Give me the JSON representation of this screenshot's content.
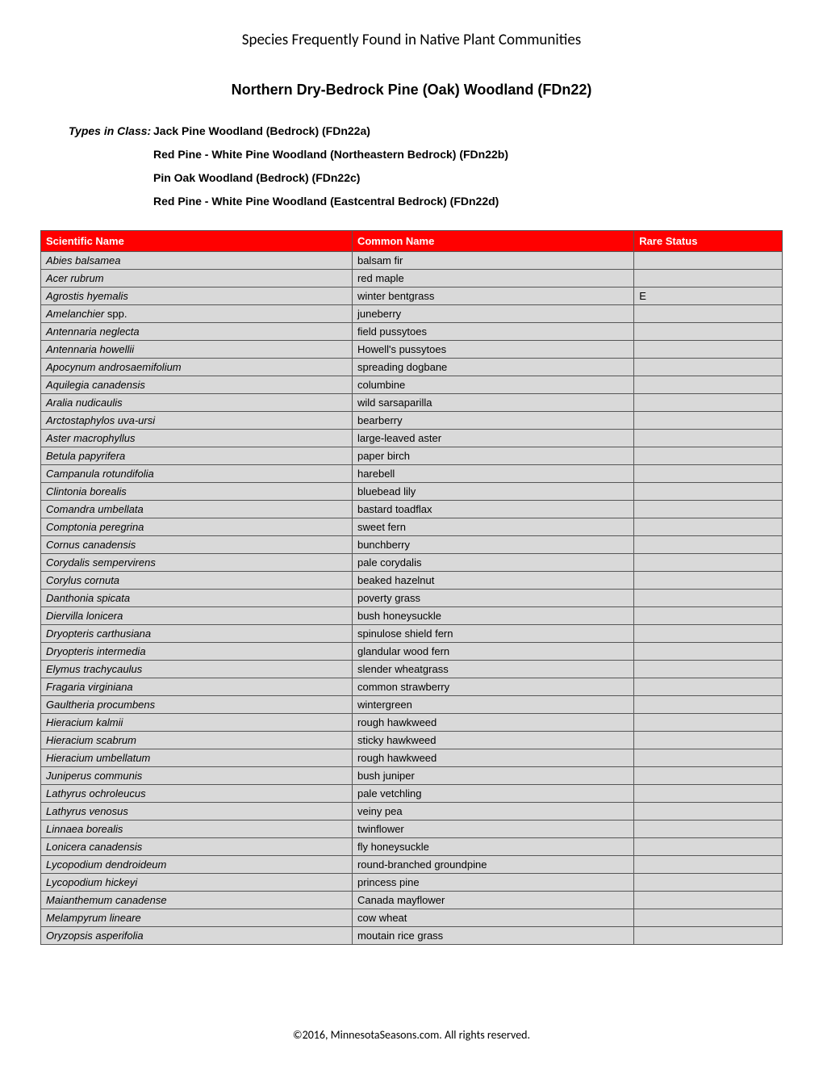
{
  "page_title": "Species Frequently Found in Native Plant Communities",
  "doc_title": "Northern Dry-Bedrock Pine (Oak) Woodland  (FDn22)",
  "types_label": "Types in Class:",
  "types_in_class": [
    "Jack Pine Woodland (Bedrock)  (FDn22a)",
    "Red Pine - White Pine Woodland (Northeastern Bedrock)  (FDn22b)",
    "Pin Oak Woodland (Bedrock)  (FDn22c)",
    "Red Pine - White Pine Woodland (Eastcentral Bedrock)  (FDn22d)"
  ],
  "table": {
    "header_bg": "#ff0000",
    "header_fg": "#ffffff",
    "row_bg": "#d9d9d9",
    "border_color": "#555555",
    "columns": [
      "Scientific Name",
      "Common Name",
      "Rare Status"
    ],
    "rows": [
      {
        "sci": "Abies balsamea",
        "common": "balsam fir",
        "rare": ""
      },
      {
        "sci": "Acer rubrum",
        "common": "red maple",
        "rare": ""
      },
      {
        "sci": "Agrostis hyemalis",
        "common": "winter bentgrass",
        "rare": "E"
      },
      {
        "sci": "Amelanchier",
        "sci_suffix": " spp.",
        "common": "juneberry",
        "rare": ""
      },
      {
        "sci": "Antennaria neglecta",
        "common": "field pussytoes",
        "rare": ""
      },
      {
        "sci": "Antennaria howellii",
        "common": "Howell's pussytoes",
        "rare": ""
      },
      {
        "sci": "Apocynum androsaemifolium",
        "common": "spreading dogbane",
        "rare": ""
      },
      {
        "sci": "Aquilegia canadensis",
        "common": "columbine",
        "rare": ""
      },
      {
        "sci": "Aralia nudicaulis",
        "common": "wild sarsaparilla",
        "rare": ""
      },
      {
        "sci": "Arctostaphylos uva-ursi",
        "common": "bearberry",
        "rare": ""
      },
      {
        "sci": "Aster macrophyllus",
        "common": "large-leaved aster",
        "rare": ""
      },
      {
        "sci": "Betula papyrifera",
        "common": "paper birch",
        "rare": ""
      },
      {
        "sci": "Campanula rotundifolia",
        "common": "harebell",
        "rare": ""
      },
      {
        "sci": "Clintonia borealis",
        "common": "bluebead lily",
        "rare": ""
      },
      {
        "sci": "Comandra umbellata",
        "common": "bastard toadflax",
        "rare": ""
      },
      {
        "sci": "Comptonia peregrina",
        "common": "sweet fern",
        "rare": ""
      },
      {
        "sci": "Cornus canadensis",
        "common": "bunchberry",
        "rare": ""
      },
      {
        "sci": "Corydalis sempervirens",
        "common": "pale corydalis",
        "rare": ""
      },
      {
        "sci": "Corylus cornuta",
        "common": "beaked hazelnut",
        "rare": ""
      },
      {
        "sci": "Danthonia spicata",
        "common": "poverty grass",
        "rare": ""
      },
      {
        "sci": "Diervilla lonicera",
        "common": "bush honeysuckle",
        "rare": ""
      },
      {
        "sci": "Dryopteris carthusiana",
        "common": "spinulose shield fern",
        "rare": ""
      },
      {
        "sci": "Dryopteris intermedia",
        "common": "glandular wood fern",
        "rare": ""
      },
      {
        "sci": "Elymus trachycaulus",
        "common": "slender wheatgrass",
        "rare": ""
      },
      {
        "sci": "Fragaria virginiana",
        "common": "common strawberry",
        "rare": ""
      },
      {
        "sci": "Gaultheria procumbens",
        "common": "wintergreen",
        "rare": ""
      },
      {
        "sci": "Hieracium kalmii",
        "common": "rough hawkweed",
        "rare": ""
      },
      {
        "sci": "Hieracium scabrum",
        "common": "sticky hawkweed",
        "rare": ""
      },
      {
        "sci": "Hieracium umbellatum",
        "common": "rough hawkweed",
        "rare": ""
      },
      {
        "sci": "Juniperus communis",
        "common": "bush juniper",
        "rare": ""
      },
      {
        "sci": "Lathyrus ochroleucus",
        "common": "pale vetchling",
        "rare": ""
      },
      {
        "sci": "Lathyrus venosus",
        "common": "veiny pea",
        "rare": ""
      },
      {
        "sci": "Linnaea borealis",
        "common": "twinflower",
        "rare": ""
      },
      {
        "sci": "Lonicera canadensis",
        "common": "fly honeysuckle",
        "rare": ""
      },
      {
        "sci": "Lycopodium dendroideum",
        "common": "round-branched groundpine",
        "rare": ""
      },
      {
        "sci": "Lycopodium hickeyi",
        "common": "princess pine",
        "rare": ""
      },
      {
        "sci": "Maianthemum canadense",
        "common": "Canada mayflower",
        "rare": ""
      },
      {
        "sci": "Melampyrum lineare",
        "common": "cow wheat",
        "rare": ""
      },
      {
        "sci": "Oryzopsis asperifolia",
        "common": "moutain rice grass",
        "rare": ""
      }
    ]
  },
  "footer": "©2016, MinnesotaSeasons.com. All rights reserved."
}
